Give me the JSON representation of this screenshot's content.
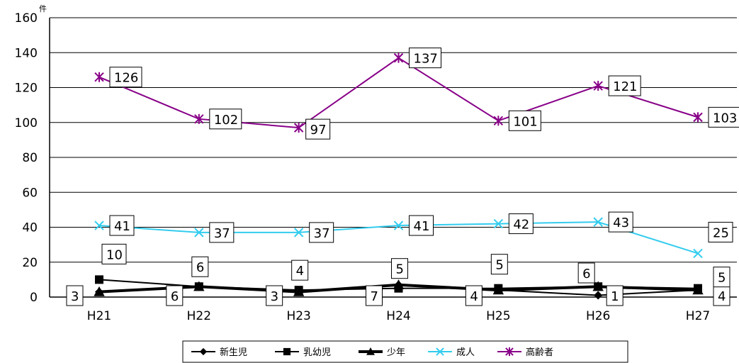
{
  "chart_data": {
    "type": "line",
    "categories": [
      "H21",
      "H22",
      "H23",
      "H24",
      "H25",
      "H26",
      "H27"
    ],
    "y_unit": "件",
    "ylim": [
      0,
      160
    ],
    "y_ticks": [
      "0",
      "20",
      "40",
      "60",
      "80",
      "100",
      "120",
      "140",
      "160"
    ],
    "grid": true,
    "legend_position": "bottom",
    "series": [
      {
        "name": "新生児",
        "color": "#000000",
        "marker": "diamond",
        "values": [
          3,
          6,
          3,
          7,
          4,
          1,
          4
        ],
        "labels": [
          "3",
          "6",
          "3",
          "7",
          "4",
          "1",
          "4"
        ]
      },
      {
        "name": "乳幼児",
        "color": "#000000",
        "marker": "square",
        "values": [
          10,
          6,
          4,
          5,
          5,
          6,
          5
        ],
        "labels": [
          "10",
          "6",
          "4",
          "5",
          "5",
          "6",
          "5"
        ]
      },
      {
        "name": "少年",
        "color": "#000000",
        "marker": "triangle",
        "values": [
          3,
          6,
          3,
          7,
          4,
          6,
          4
        ],
        "labels": [],
        "bold": true
      },
      {
        "name": "成人",
        "color": "#33ccee",
        "marker": "x",
        "values": [
          41,
          37,
          37,
          41,
          42,
          43,
          25
        ],
        "labels": [
          "41",
          "37",
          "37",
          "41",
          "42",
          "43",
          "25"
        ]
      },
      {
        "name": "高齢者",
        "color": "#880088",
        "marker": "star",
        "values": [
          126,
          102,
          97,
          137,
          101,
          121,
          103
        ],
        "labels": [
          "126",
          "102",
          "97",
          "137",
          "101",
          "121",
          "103"
        ]
      }
    ]
  }
}
